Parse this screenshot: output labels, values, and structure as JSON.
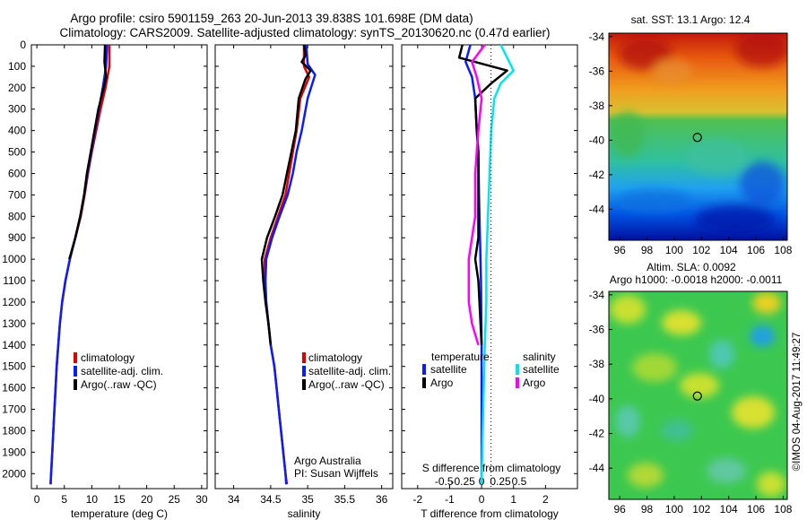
{
  "header": {
    "line1": "Argo profile: csiro 5901159_263 20-Jun-2013 39.838S 101.698E (DM data)",
    "line2": "Climatology: CARS2009. Satellite-adjusted climatology: synTS_20130620.nc (0.47d earlier)"
  },
  "colors": {
    "climatology": "#e00000",
    "satellite": "#0a1bff",
    "argo": "#000000",
    "salinity_sat": "#00e5ee",
    "salinity_argo": "#ff00ff"
  },
  "chart_data": [
    {
      "type": "line",
      "name": "temperature-panel",
      "xlabel": "temperature (deg C)",
      "xlim": [
        -1,
        31
      ],
      "ylim": [
        0,
        2070
      ],
      "xticks": [
        "0",
        "5",
        "10",
        "15",
        "20",
        "25",
        "30"
      ],
      "yticks": [
        "0",
        "100",
        "200",
        "300",
        "400",
        "500",
        "600",
        "700",
        "800",
        "900",
        "1000",
        "1100",
        "1200",
        "1300",
        "1400",
        "1500",
        "1600",
        "1700",
        "1800",
        "1900",
        "2000"
      ],
      "legend": [
        "climatology",
        "satellite-adj. clim.",
        "Argo(..raw -QC)"
      ],
      "series": [
        {
          "name": "climatology",
          "points": [
            [
              13.2,
              0
            ],
            [
              13.2,
              100
            ],
            [
              12.5,
              200
            ],
            [
              11.6,
              300
            ],
            [
              10.8,
              400
            ],
            [
              10.0,
              500
            ],
            [
              9.3,
              600
            ],
            [
              8.7,
              700
            ],
            [
              8.0,
              800
            ],
            [
              7.0,
              900
            ],
            [
              6.0,
              1000
            ],
            [
              5.2,
              1100
            ],
            [
              4.6,
              1200
            ],
            [
              4.2,
              1300
            ],
            [
              3.9,
              1400
            ],
            [
              3.6,
              1500
            ],
            [
              3.4,
              1600
            ],
            [
              3.2,
              1700
            ],
            [
              3.0,
              1800
            ],
            [
              2.8,
              1900
            ],
            [
              2.6,
              2000
            ],
            [
              2.5,
              2050
            ]
          ]
        },
        {
          "name": "satellite-adj. clim.",
          "points": [
            [
              12.8,
              0
            ],
            [
              12.6,
              100
            ],
            [
              12.0,
              200
            ],
            [
              11.3,
              300
            ],
            [
              10.6,
              400
            ],
            [
              9.9,
              500
            ],
            [
              9.2,
              600
            ],
            [
              8.6,
              700
            ],
            [
              7.9,
              800
            ],
            [
              7.0,
              900
            ],
            [
              6.0,
              1000
            ],
            [
              5.2,
              1100
            ],
            [
              4.6,
              1200
            ],
            [
              4.2,
              1300
            ],
            [
              3.9,
              1400
            ],
            [
              3.6,
              1500
            ],
            [
              3.4,
              1600
            ],
            [
              3.2,
              1700
            ],
            [
              3.0,
              1800
            ],
            [
              2.8,
              1900
            ],
            [
              2.6,
              2000
            ],
            [
              2.5,
              2050
            ]
          ]
        },
        {
          "name": "Argo(..raw -QC)",
          "points": [
            [
              12.4,
              0
            ],
            [
              12.3,
              80
            ],
            [
              12.6,
              150
            ],
            [
              12.2,
              200
            ],
            [
              11.2,
              300
            ],
            [
              10.5,
              400
            ],
            [
              9.8,
              500
            ],
            [
              9.1,
              600
            ],
            [
              8.6,
              700
            ],
            [
              7.9,
              800
            ],
            [
              7.0,
              900
            ],
            [
              5.9,
              1000
            ]
          ]
        }
      ]
    },
    {
      "type": "line",
      "name": "salinity-panel",
      "xlabel": "salinity",
      "xlim": [
        33.75,
        36.15
      ],
      "ylim": [
        0,
        2070
      ],
      "xticks": [
        "34",
        "34.5",
        "35",
        "35.5",
        "36"
      ],
      "legend": [
        "climatology",
        "satellite-adj. clim.",
        "Argo(..raw -QC)"
      ],
      "annotation": [
        "Argo Australia",
        "PI: Susan Wijffels"
      ],
      "series": [
        {
          "name": "climatology",
          "points": [
            [
              34.95,
              0
            ],
            [
              34.95,
              100
            ],
            [
              35.02,
              150
            ],
            [
              34.9,
              250
            ],
            [
              34.85,
              400
            ],
            [
              34.8,
              500
            ],
            [
              34.75,
              600
            ],
            [
              34.7,
              700
            ],
            [
              34.6,
              800
            ],
            [
              34.5,
              900
            ],
            [
              34.42,
              1000
            ],
            [
              34.42,
              1100
            ],
            [
              34.44,
              1200
            ],
            [
              34.47,
              1300
            ],
            [
              34.5,
              1400
            ],
            [
              34.55,
              1500
            ],
            [
              34.58,
              1600
            ],
            [
              34.61,
              1700
            ],
            [
              34.64,
              1800
            ],
            [
              34.67,
              1900
            ],
            [
              34.7,
              2000
            ],
            [
              34.72,
              2050
            ]
          ]
        },
        {
          "name": "satellite-adj. clim.",
          "points": [
            [
              34.98,
              0
            ],
            [
              35.0,
              90
            ],
            [
              35.1,
              140
            ],
            [
              35.0,
              250
            ],
            [
              34.92,
              400
            ],
            [
              34.85,
              500
            ],
            [
              34.8,
              600
            ],
            [
              34.73,
              700
            ],
            [
              34.62,
              800
            ],
            [
              34.52,
              900
            ],
            [
              34.44,
              1000
            ],
            [
              34.43,
              1100
            ],
            [
              34.44,
              1200
            ],
            [
              34.47,
              1300
            ],
            [
              34.5,
              1400
            ],
            [
              34.55,
              1500
            ],
            [
              34.58,
              1600
            ],
            [
              34.61,
              1700
            ],
            [
              34.64,
              1800
            ],
            [
              34.67,
              1900
            ],
            [
              34.7,
              2000
            ],
            [
              34.71,
              2050
            ]
          ]
        },
        {
          "name": "Argo(..raw -QC)",
          "points": [
            [
              34.95,
              0
            ],
            [
              34.97,
              50
            ],
            [
              34.92,
              80
            ],
            [
              35.04,
              120
            ],
            [
              34.97,
              160
            ],
            [
              34.88,
              250
            ],
            [
              34.84,
              400
            ],
            [
              34.78,
              500
            ],
            [
              34.72,
              600
            ],
            [
              34.66,
              700
            ],
            [
              34.56,
              800
            ],
            [
              34.45,
              900
            ],
            [
              34.38,
              1000
            ],
            [
              34.4,
              1100
            ],
            [
              34.43,
              1200
            ],
            [
              34.47,
              1300
            ],
            [
              34.5,
              1400
            ]
          ]
        }
      ]
    },
    {
      "type": "line",
      "name": "difference-panel",
      "xlabel": "T difference from climatology",
      "xlabel2": "S difference from climatology",
      "xlim": [
        -2.5,
        3.0
      ],
      "ylim": [
        0,
        2070
      ],
      "xticks": [
        "-2",
        "-1",
        "0",
        "1",
        "2"
      ],
      "xticks2": [
        "-0.5",
        "-0.25",
        "0",
        "0.25",
        "0.5"
      ],
      "legend_headers": [
        "temperature",
        "salinity"
      ],
      "legend": [
        "satellite",
        "Argo",
        "satellite",
        "Argo"
      ],
      "series": [
        {
          "name": "temperature satellite",
          "points": [
            [
              -0.35,
              0
            ],
            [
              -0.5,
              80
            ],
            [
              -0.3,
              150
            ],
            [
              -0.2,
              250
            ],
            [
              -0.15,
              400
            ],
            [
              -0.1,
              500
            ],
            [
              -0.08,
              700
            ],
            [
              -0.05,
              900
            ],
            [
              -0.02,
              1100
            ],
            [
              0,
              1400
            ],
            [
              0,
              2050
            ]
          ]
        },
        {
          "name": "temperature Argo",
          "points": [
            [
              -0.6,
              0
            ],
            [
              -0.7,
              60
            ],
            [
              0.8,
              120
            ],
            [
              0.3,
              180
            ],
            [
              -0.2,
              250
            ],
            [
              -0.15,
              400
            ],
            [
              -0.1,
              500
            ],
            [
              -0.1,
              700
            ],
            [
              -0.1,
              900
            ],
            [
              -0.2,
              1000
            ],
            [
              -0.1,
              1100
            ],
            [
              0,
              1400
            ]
          ]
        },
        {
          "name": "salinity satellite",
          "points": [
            [
              0.6,
              0
            ],
            [
              0.8,
              60
            ],
            [
              1.0,
              120
            ],
            [
              0.6,
              180
            ],
            [
              0.4,
              250
            ],
            [
              0.3,
              400
            ],
            [
              0.25,
              600
            ],
            [
              0.2,
              800
            ],
            [
              0.15,
              1000
            ],
            [
              0.15,
              1200
            ],
            [
              0.1,
              1400
            ],
            [
              0.05,
              1700
            ],
            [
              0,
              2050
            ]
          ]
        },
        {
          "name": "salinity Argo",
          "points": [
            [
              0.1,
              0
            ],
            [
              -0.3,
              80
            ],
            [
              -0.15,
              150
            ],
            [
              0.0,
              250
            ],
            [
              -0.1,
              400
            ],
            [
              -0.15,
              500
            ],
            [
              -0.2,
              600
            ],
            [
              -0.2,
              800
            ],
            [
              -0.4,
              1000
            ],
            [
              -0.4,
              1200
            ],
            [
              -0.3,
              1300
            ],
            [
              -0.1,
              1400
            ]
          ]
        }
      ]
    },
    {
      "type": "heatmap",
      "name": "sst-map",
      "title": "sat. SST: 13.1 Argo: 12.4",
      "xticks": [
        "96",
        "98",
        "100",
        "102",
        "104",
        "106",
        "108"
      ],
      "yticks": [
        "-34",
        "-36",
        "-38",
        "-40",
        "-42",
        "-44"
      ],
      "xlim": [
        95.2,
        108.3
      ],
      "ylim": [
        -45.8,
        -33.8
      ],
      "marker": [
        101.7,
        -39.84
      ]
    },
    {
      "type": "heatmap",
      "name": "sla-map",
      "title": "Altim. SLA: 0.0092",
      "subtitle": "Argo h1000: -0.0018 h2000: -0.0011",
      "xticks": [
        "96",
        "98",
        "100",
        "102",
        "104",
        "106",
        "108"
      ],
      "yticks": [
        "-34",
        "-36",
        "-38",
        "-40",
        "-42",
        "-44"
      ],
      "xlim": [
        95.2,
        108.3
      ],
      "ylim": [
        -45.8,
        -33.8
      ],
      "marker": [
        101.7,
        -39.84
      ]
    }
  ],
  "footer": {
    "stamp": "©IMOS 04-Aug-2017 11:49:27"
  }
}
